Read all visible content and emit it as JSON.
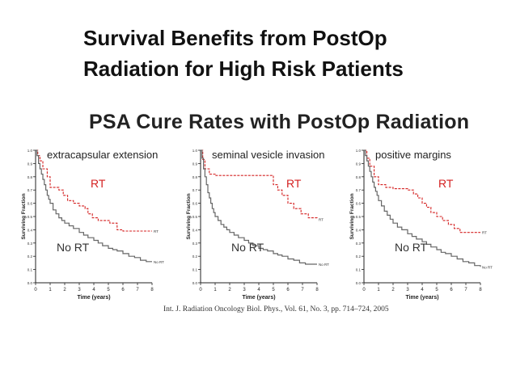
{
  "slide": {
    "title": "Survival Benefits from PostOp Radiation for High Risk Patients",
    "subtitle": "PSA Cure Rates with PostOp Radiation",
    "citation": "Int. J. Radiation Oncology Biol. Phys., Vol. 61, No. 3, pp. 714–724, 2005"
  },
  "colors": {
    "rt": "#d42020",
    "no_rt": "#666666",
    "axis": "#222222"
  },
  "chart_data": [
    {
      "type": "line",
      "title": "extracapsular extension",
      "xlabel": "Time (years)",
      "ylabel": "Surviving Fraction",
      "xlim": [
        0,
        8
      ],
      "ylim": [
        0,
        1
      ],
      "xticks": [
        0,
        1,
        2,
        3,
        4,
        5,
        6,
        7,
        8
      ],
      "yticks": [
        0.0,
        0.1,
        0.2,
        0.3,
        0.4,
        0.5,
        0.6,
        0.7,
        0.8,
        0.9,
        1.0
      ],
      "annotations": {
        "rt": "RT",
        "no_rt": "No RT"
      },
      "series": [
        {
          "name": "RT",
          "end_label": "RT",
          "style": "dashed",
          "x": [
            0,
            0.15,
            0.3,
            0.5,
            0.8,
            1.0,
            1.6,
            1.9,
            2.2,
            2.6,
            3.0,
            3.4,
            3.6,
            3.9,
            4.3,
            4.6,
            5.1,
            5.6,
            6.0,
            7.0,
            8.0
          ],
          "y": [
            1.0,
            0.96,
            0.92,
            0.86,
            0.8,
            0.72,
            0.7,
            0.66,
            0.62,
            0.6,
            0.58,
            0.56,
            0.52,
            0.49,
            0.47,
            0.47,
            0.45,
            0.4,
            0.39,
            0.39,
            0.39
          ]
        },
        {
          "name": "No RT",
          "end_label": "No RT",
          "style": "solid",
          "x": [
            0,
            0.1,
            0.2,
            0.3,
            0.4,
            0.5,
            0.6,
            0.7,
            0.8,
            0.9,
            1.0,
            1.2,
            1.4,
            1.6,
            1.8,
            2.0,
            2.3,
            2.6,
            3.0,
            3.3,
            3.6,
            4.0,
            4.3,
            4.6,
            5.0,
            5.3,
            5.6,
            6.0,
            6.4,
            6.8,
            7.2,
            7.6,
            8.0
          ],
          "y": [
            1.0,
            0.96,
            0.9,
            0.86,
            0.82,
            0.78,
            0.74,
            0.7,
            0.66,
            0.63,
            0.6,
            0.55,
            0.52,
            0.49,
            0.47,
            0.45,
            0.43,
            0.41,
            0.38,
            0.36,
            0.34,
            0.32,
            0.3,
            0.28,
            0.26,
            0.25,
            0.24,
            0.22,
            0.2,
            0.19,
            0.17,
            0.16,
            0.16
          ]
        }
      ]
    },
    {
      "type": "line",
      "title": "seminal vesicle invasion",
      "xlabel": "Time (years)",
      "ylabel": "Surviving Fraction",
      "xlim": [
        0,
        8
      ],
      "ylim": [
        0,
        1
      ],
      "xticks": [
        0,
        1,
        2,
        3,
        4,
        5,
        6,
        7,
        8
      ],
      "yticks": [
        0.0,
        0.1,
        0.2,
        0.3,
        0.4,
        0.5,
        0.6,
        0.7,
        0.8,
        0.9,
        1.0
      ],
      "annotations": {
        "rt": "RT",
        "no_rt": "No RT"
      },
      "series": [
        {
          "name": "RT",
          "end_label": "RT",
          "style": "dashed",
          "x": [
            0,
            0.15,
            0.3,
            0.6,
            1.0,
            2.0,
            3.0,
            4.0,
            5.0,
            5.3,
            5.6,
            6.0,
            6.4,
            6.9,
            7.4,
            8.0
          ],
          "y": [
            1.0,
            0.93,
            0.86,
            0.82,
            0.81,
            0.81,
            0.81,
            0.81,
            0.74,
            0.7,
            0.66,
            0.6,
            0.56,
            0.52,
            0.49,
            0.48
          ]
        },
        {
          "name": "No RT",
          "end_label": "No RT",
          "style": "solid",
          "x": [
            0,
            0.1,
            0.2,
            0.3,
            0.4,
            0.5,
            0.6,
            0.7,
            0.8,
            0.9,
            1.0,
            1.2,
            1.4,
            1.6,
            1.8,
            2.0,
            2.3,
            2.6,
            3.0,
            3.3,
            3.6,
            4.0,
            4.3,
            4.6,
            5.0,
            5.3,
            5.6,
            6.0,
            6.4,
            6.8,
            7.2,
            7.6,
            8.0
          ],
          "y": [
            1.0,
            0.94,
            0.86,
            0.8,
            0.74,
            0.68,
            0.64,
            0.6,
            0.56,
            0.53,
            0.5,
            0.47,
            0.44,
            0.42,
            0.4,
            0.38,
            0.36,
            0.34,
            0.32,
            0.3,
            0.28,
            0.26,
            0.25,
            0.24,
            0.22,
            0.21,
            0.2,
            0.18,
            0.17,
            0.15,
            0.14,
            0.14,
            0.14
          ]
        }
      ]
    },
    {
      "type": "line",
      "title": "positive margins",
      "xlabel": "Time (years)",
      "ylabel": "Surviving Fraction",
      "xlim": [
        0,
        8
      ],
      "ylim": [
        0,
        1
      ],
      "xticks": [
        0,
        1,
        2,
        3,
        4,
        5,
        6,
        7,
        8
      ],
      "yticks": [
        0.0,
        0.1,
        0.2,
        0.3,
        0.4,
        0.5,
        0.6,
        0.7,
        0.8,
        0.9,
        1.0
      ],
      "annotations": {
        "rt": "RT",
        "no_rt": "No RT"
      },
      "series": [
        {
          "name": "RT",
          "end_label": "RT",
          "style": "dashed",
          "x": [
            0,
            0.2,
            0.4,
            0.7,
            1.0,
            1.5,
            2.0,
            2.5,
            3.0,
            3.4,
            3.7,
            4.0,
            4.3,
            4.6,
            5.0,
            5.4,
            5.8,
            6.2,
            6.6,
            7.2,
            8.0
          ],
          "y": [
            1.0,
            0.94,
            0.88,
            0.8,
            0.74,
            0.72,
            0.71,
            0.71,
            0.7,
            0.67,
            0.64,
            0.6,
            0.57,
            0.53,
            0.5,
            0.47,
            0.44,
            0.41,
            0.38,
            0.38,
            0.38
          ]
        },
        {
          "name": "No RT",
          "end_label": "No RT",
          "style": "solid",
          "x": [
            0,
            0.1,
            0.2,
            0.3,
            0.4,
            0.5,
            0.6,
            0.7,
            0.8,
            0.9,
            1.0,
            1.2,
            1.4,
            1.6,
            1.8,
            2.0,
            2.3,
            2.6,
            3.0,
            3.3,
            3.6,
            4.0,
            4.3,
            4.6,
            5.0,
            5.3,
            5.6,
            6.0,
            6.4,
            6.8,
            7.2,
            7.6,
            8.0
          ],
          "y": [
            1.0,
            0.96,
            0.92,
            0.88,
            0.84,
            0.8,
            0.76,
            0.72,
            0.69,
            0.66,
            0.62,
            0.58,
            0.54,
            0.51,
            0.48,
            0.45,
            0.42,
            0.4,
            0.37,
            0.35,
            0.33,
            0.31,
            0.29,
            0.27,
            0.25,
            0.23,
            0.22,
            0.2,
            0.18,
            0.16,
            0.15,
            0.13,
            0.12
          ]
        }
      ]
    }
  ]
}
